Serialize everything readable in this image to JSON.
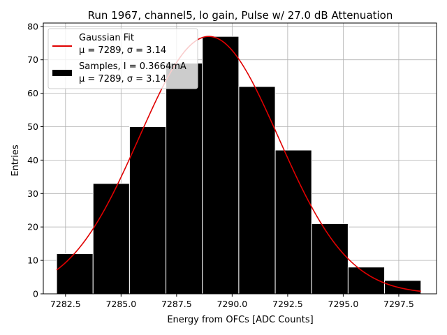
{
  "chart_data": {
    "type": "bar",
    "title": "Run 1967, channel5, lo gain, Pulse w/ 27.0 dB Attenuation",
    "xlabel": "Energy from OFCs [ADC Counts]",
    "ylabel": "Entries",
    "xlim": [
      7281.5,
      7299.2
    ],
    "ylim": [
      0,
      81
    ],
    "grid": true,
    "legend_position": "top-left",
    "xticks": [
      7282.5,
      7285.0,
      7287.5,
      7290.0,
      7292.5,
      7295.0,
      7297.5
    ],
    "xtick_labels": [
      "7282.5",
      "7285.0",
      "7287.5",
      "7290.0",
      "7292.5",
      "7295.0",
      "7297.5"
    ],
    "yticks": [
      0,
      10,
      20,
      30,
      40,
      50,
      60,
      70,
      80
    ],
    "ytick_labels": [
      "0",
      "10",
      "20",
      "30",
      "40",
      "50",
      "60",
      "70",
      "80"
    ],
    "histogram": {
      "name": "Samples, I = 0.3664mA",
      "name_line2": "μ = 7289, σ = 3.14",
      "color": "#000000",
      "bin_edges": [
        7282.1,
        7283.74,
        7285.38,
        7287.02,
        7288.66,
        7290.3,
        7291.94,
        7293.58,
        7295.22,
        7296.86,
        7298.5
      ],
      "values": [
        12,
        33,
        50,
        69,
        77,
        62,
        43,
        21,
        8,
        4
      ]
    },
    "fit": {
      "name": "Gaussian Fit",
      "name_line2": "μ = 7289, σ = 3.14",
      "color": "#e00000",
      "mu": 7288.95,
      "sigma": 3.14,
      "amplitude": 77,
      "x_range": [
        7282.1,
        7298.5
      ]
    }
  }
}
